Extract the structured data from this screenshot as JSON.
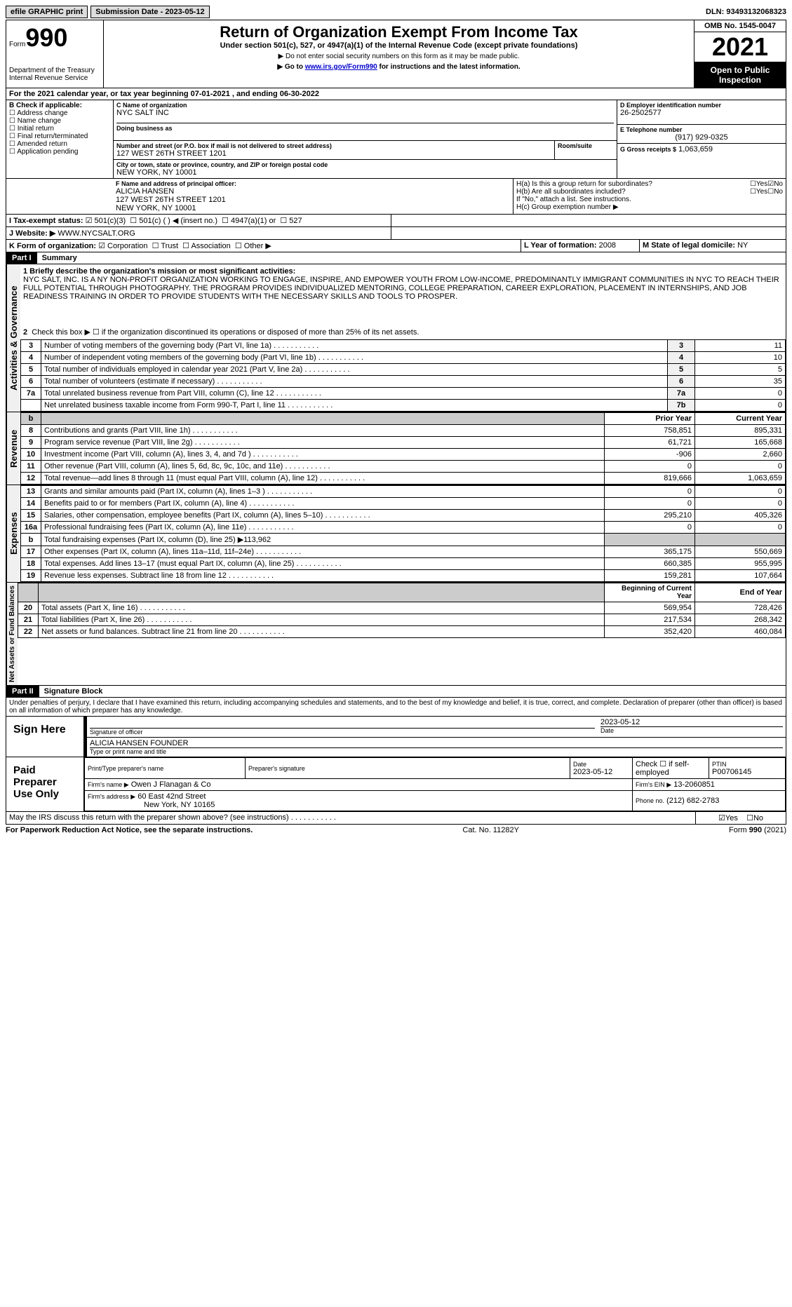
{
  "top": {
    "efile": "efile GRAPHIC print",
    "submission": "Submission Date - 2023-05-12",
    "dln": "DLN: 93493132068323"
  },
  "header": {
    "form_label": "Form",
    "form_number": "990",
    "title": "Return of Organization Exempt From Income Tax",
    "subtitle": "Under section 501(c), 527, or 4947(a)(1) of the Internal Revenue Code (except private foundations)",
    "note1": "▶ Do not enter social security numbers on this form as it may be made public.",
    "note2_pre": "▶ Go to ",
    "note2_link": "www.irs.gov/Form990",
    "note2_post": " for instructions and the latest information.",
    "dept": "Department of the Treasury",
    "irs": "Internal Revenue Service",
    "omb": "OMB No. 1545-0047",
    "year": "2021",
    "inspection": "Open to Public Inspection"
  },
  "line_a": "For the 2021 calendar year, or tax year beginning 07-01-2021    , and ending 06-30-2022",
  "box_b": {
    "label": "B Check if applicable:",
    "items": [
      "Address change",
      "Name change",
      "Initial return",
      "Final return/terminated",
      "Amended return",
      "Application pending"
    ]
  },
  "box_c": {
    "name_label": "C Name of organization",
    "name": "NYC SALT INC",
    "dba_label": "Doing business as",
    "addr_label": "Number and street (or P.O. box if mail is not delivered to street address)",
    "addr": "127 WEST 26TH STREET 1201",
    "room_label": "Room/suite",
    "city_label": "City or town, state or province, country, and ZIP or foreign postal code",
    "city": "NEW YORK, NY  10001"
  },
  "box_d": {
    "label": "D Employer identification number",
    "val": "26-2502577"
  },
  "box_e": {
    "label": "E Telephone number",
    "val": "(917) 929-0325"
  },
  "box_g": {
    "label": "G Gross receipts $",
    "val": "1,063,659"
  },
  "box_f": {
    "label": "F  Name and address of principal officer:",
    "name": "ALICIA HANSEN",
    "addr1": "127 WEST 26TH STREET 1201",
    "addr2": "NEW YORK, NY  10001"
  },
  "box_h": {
    "ha_label": "H(a)  Is this a group return for subordinates?",
    "hb_label": "H(b)  Are all subordinates included?",
    "hb_note": "If \"No,\" attach a list. See instructions.",
    "hc_label": "H(c)  Group exemption number ▶"
  },
  "box_i": {
    "label": "I  Tax-exempt status:",
    "opts": [
      "501(c)(3)",
      "501(c) (   ) ◀ (insert no.)",
      "4947(a)(1) or",
      "527"
    ]
  },
  "box_j": {
    "label": "J  Website: ▶",
    "val": "WWW.NYCSALT.ORG"
  },
  "box_k": {
    "label": "K Form of organization:",
    "opts": [
      "Corporation",
      "Trust",
      "Association",
      "Other ▶"
    ]
  },
  "box_l": {
    "label": "L Year of formation:",
    "val": "2008"
  },
  "box_m": {
    "label": "M State of legal domicile:",
    "val": "NY"
  },
  "part1": {
    "title": "Part I",
    "name": "Summary",
    "mission_label": "1  Briefly describe the organization's mission or most significant activities:",
    "mission": "NYC SALT, INC. IS A NY NON-PROFIT ORGANIZATION WORKING TO ENGAGE, INSPIRE, AND EMPOWER YOUTH FROM LOW-INCOME, PREDOMINANTLY IMMIGRANT COMMUNITIES IN NYC TO REACH THEIR FULL POTENTIAL THROUGH PHOTOGRAPHY. THE PROGRAM PROVIDES INDIVIDUALIZED MENTORING, COLLEGE PREPARATION, CAREER EXPLORATION, PLACEMENT IN INTERNSHIPS, AND JOB READINESS TRAINING IN ORDER TO PROVIDE STUDENTS WITH THE NECESSARY SKILLS AND TOOLS TO PROSPER.",
    "line2": "Check this box ▶ ☐  if the organization discontinued its operations or disposed of more than 25% of its net assets.",
    "gov_rows": [
      {
        "n": "3",
        "desc": "Number of voting members of the governing body (Part VI, line 1a)",
        "ref": "3",
        "val": "11"
      },
      {
        "n": "4",
        "desc": "Number of independent voting members of the governing body (Part VI, line 1b)",
        "ref": "4",
        "val": "10"
      },
      {
        "n": "5",
        "desc": "Total number of individuals employed in calendar year 2021 (Part V, line 2a)",
        "ref": "5",
        "val": "5"
      },
      {
        "n": "6",
        "desc": "Total number of volunteers (estimate if necessary)",
        "ref": "6",
        "val": "35"
      },
      {
        "n": "7a",
        "desc": "Total unrelated business revenue from Part VIII, column (C), line 12",
        "ref": "7a",
        "val": "0"
      },
      {
        "n": "",
        "desc": "Net unrelated business taxable income from Form 990-T, Part I, line 11",
        "ref": "7b",
        "val": "0"
      }
    ],
    "col_prior": "Prior Year",
    "col_current": "Current Year",
    "rev_rows": [
      {
        "n": "8",
        "desc": "Contributions and grants (Part VIII, line 1h)",
        "p": "758,851",
        "c": "895,331"
      },
      {
        "n": "9",
        "desc": "Program service revenue (Part VIII, line 2g)",
        "p": "61,721",
        "c": "165,668"
      },
      {
        "n": "10",
        "desc": "Investment income (Part VIII, column (A), lines 3, 4, and 7d )",
        "p": "-906",
        "c": "2,660"
      },
      {
        "n": "11",
        "desc": "Other revenue (Part VIII, column (A), lines 5, 6d, 8c, 9c, 10c, and 11e)",
        "p": "0",
        "c": "0"
      },
      {
        "n": "12",
        "desc": "Total revenue—add lines 8 through 11 (must equal Part VIII, column (A), line 12)",
        "p": "819,666",
        "c": "1,063,659"
      }
    ],
    "exp_rows": [
      {
        "n": "13",
        "desc": "Grants and similar amounts paid (Part IX, column (A), lines 1–3 )",
        "p": "0",
        "c": "0"
      },
      {
        "n": "14",
        "desc": "Benefits paid to or for members (Part IX, column (A), line 4)",
        "p": "0",
        "c": "0"
      },
      {
        "n": "15",
        "desc": "Salaries, other compensation, employee benefits (Part IX, column (A), lines 5–10)",
        "p": "295,210",
        "c": "405,326"
      },
      {
        "n": "16a",
        "desc": "Professional fundraising fees (Part IX, column (A), line 11e)",
        "p": "0",
        "c": "0"
      },
      {
        "n": "b",
        "desc": "Total fundraising expenses (Part IX, column (D), line 25) ▶113,962",
        "p": "",
        "c": "",
        "shaded": true
      },
      {
        "n": "17",
        "desc": "Other expenses (Part IX, column (A), lines 11a–11d, 11f–24e)",
        "p": "365,175",
        "c": "550,669"
      },
      {
        "n": "18",
        "desc": "Total expenses. Add lines 13–17 (must equal Part IX, column (A), line 25)",
        "p": "660,385",
        "c": "955,995"
      },
      {
        "n": "19",
        "desc": "Revenue less expenses. Subtract line 18 from line 12",
        "p": "159,281",
        "c": "107,664"
      }
    ],
    "col_begin": "Beginning of Current Year",
    "col_end": "End of Year",
    "net_rows": [
      {
        "n": "20",
        "desc": "Total assets (Part X, line 16)",
        "p": "569,954",
        "c": "728,426"
      },
      {
        "n": "21",
        "desc": "Total liabilities (Part X, line 26)",
        "p": "217,534",
        "c": "268,342"
      },
      {
        "n": "22",
        "desc": "Net assets or fund balances. Subtract line 21 from line 20",
        "p": "352,420",
        "c": "460,084"
      }
    ],
    "labels": {
      "governance": "Activities & Governance",
      "revenue": "Revenue",
      "expenses": "Expenses",
      "net": "Net Assets or Fund Balances"
    }
  },
  "part2": {
    "title": "Part II",
    "name": "Signature Block",
    "declaration": "Under penalties of perjury, I declare that I have examined this return, including accompanying schedules and statements, and to the best of my knowledge and belief, it is true, correct, and complete. Declaration of preparer (other than officer) is based on all information of which preparer has any knowledge.",
    "sign_here": "Sign Here",
    "sig_officer": "Signature of officer",
    "sig_date": "2023-05-12",
    "date_label": "Date",
    "officer_name": "ALICIA HANSEN  FOUNDER",
    "type_name": "Type or print name and title",
    "paid": "Paid Preparer Use Only",
    "prep_name_label": "Print/Type preparer's name",
    "prep_sig_label": "Preparer's signature",
    "prep_date": "2023-05-12",
    "check_self": "Check ☐ if self-employed",
    "ptin_label": "PTIN",
    "ptin": "P00706145",
    "firm_name_label": "Firm's name    ▶",
    "firm_name": "Owen J Flanagan & Co",
    "firm_ein_label": "Firm's EIN ▶",
    "firm_ein": "13-2060851",
    "firm_addr_label": "Firm's address ▶",
    "firm_addr1": "60 East 42nd Street",
    "firm_addr2": "New York, NY  10165",
    "phone_label": "Phone no.",
    "phone": "(212) 682-2783",
    "may_irs": "May the IRS discuss this return with the preparer shown above? (see instructions)",
    "yes": "Yes",
    "no": "No"
  },
  "footer": {
    "left": "For Paperwork Reduction Act Notice, see the separate instructions.",
    "mid": "Cat. No. 11282Y",
    "right_pre": "Form ",
    "right_form": "990",
    "right_post": " (2021)"
  }
}
